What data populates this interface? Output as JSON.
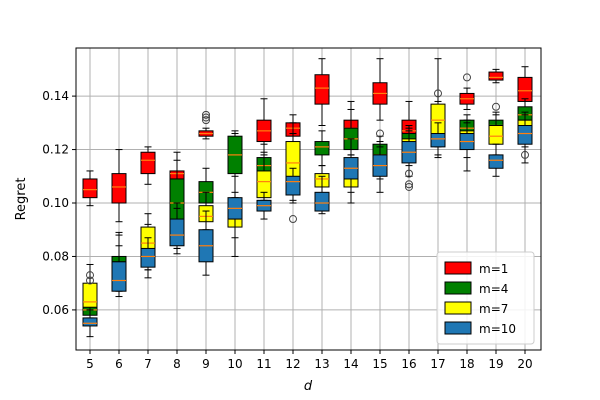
{
  "chart_data": {
    "type": "box",
    "xlabel": "d",
    "ylabel": "Regret",
    "categories": [
      "5",
      "6",
      "7",
      "8",
      "9",
      "10",
      "11",
      "12",
      "13",
      "14",
      "15",
      "16",
      "17",
      "18",
      "19",
      "20"
    ],
    "ylim": [
      0.045,
      0.158
    ],
    "yticks": [
      "0.06",
      "0.08",
      "0.10",
      "0.12",
      "0.14"
    ],
    "yticks_values": [
      0.06,
      0.08,
      0.1,
      0.12,
      0.14
    ],
    "grid": true,
    "legend_position": "lower-right",
    "median_color": "#ff7f0e",
    "series": [
      {
        "name": "m=1",
        "color": "#ff0000",
        "boxes": [
          {
            "q1": 0.102,
            "median": 0.105,
            "q3": 0.109,
            "whislo": 0.099,
            "whishi": 0.112,
            "fliers": []
          },
          {
            "q1": 0.1,
            "median": 0.106,
            "q3": 0.111,
            "whislo": 0.093,
            "whishi": 0.12,
            "fliers": []
          },
          {
            "q1": 0.111,
            "median": 0.116,
            "q3": 0.119,
            "whislo": 0.107,
            "whishi": 0.121,
            "fliers": []
          },
          {
            "q1": 0.109,
            "median": 0.111,
            "q3": 0.112,
            "whislo": 0.108,
            "whishi": 0.119,
            "fliers": []
          },
          {
            "q1": 0.125,
            "median": 0.126,
            "q3": 0.127,
            "whislo": 0.124,
            "whishi": 0.128,
            "fliers": [
              0.132,
              0.133,
              0.131
            ]
          },
          {
            "q1": 0.119,
            "median": 0.121,
            "q3": 0.123,
            "whislo": 0.117,
            "whishi": 0.126,
            "fliers": []
          },
          {
            "q1": 0.123,
            "median": 0.127,
            "q3": 0.131,
            "whislo": 0.118,
            "whishi": 0.139,
            "fliers": []
          },
          {
            "q1": 0.125,
            "median": 0.128,
            "q3": 0.13,
            "whislo": 0.122,
            "whishi": 0.133,
            "fliers": []
          },
          {
            "q1": 0.137,
            "median": 0.143,
            "q3": 0.148,
            "whislo": 0.129,
            "whishi": 0.154,
            "fliers": []
          },
          {
            "q1": 0.124,
            "median": 0.128,
            "q3": 0.131,
            "whislo": 0.118,
            "whishi": 0.138,
            "fliers": []
          },
          {
            "q1": 0.137,
            "median": 0.141,
            "q3": 0.145,
            "whislo": 0.131,
            "whishi": 0.154,
            "fliers": []
          },
          {
            "q1": 0.124,
            "median": 0.127,
            "q3": 0.131,
            "whislo": 0.117,
            "whishi": 0.138,
            "fliers": []
          },
          {
            "q1": 0.13,
            "median": 0.132,
            "q3": 0.134,
            "whislo": 0.126,
            "whishi": 0.138,
            "fliers": []
          },
          {
            "q1": 0.137,
            "median": 0.139,
            "q3": 0.141,
            "whislo": 0.135,
            "whishi": 0.143,
            "fliers": [
              0.147
            ]
          },
          {
            "q1": 0.146,
            "median": 0.147,
            "q3": 0.149,
            "whislo": 0.145,
            "whishi": 0.15,
            "fliers": []
          },
          {
            "q1": 0.138,
            "median": 0.142,
            "q3": 0.147,
            "whislo": 0.132,
            "whishi": 0.151,
            "fliers": []
          }
        ]
      },
      {
        "name": "m=4",
        "color": "#008000",
        "boxes": [
          {
            "q1": 0.058,
            "median": 0.06,
            "q3": 0.062,
            "whislo": 0.055,
            "whishi": 0.066,
            "fliers": []
          },
          {
            "q1": 0.073,
            "median": 0.077,
            "q3": 0.08,
            "whislo": 0.07,
            "whishi": 0.089,
            "fliers": []
          },
          {
            "q1": 0.078,
            "median": 0.082,
            "q3": 0.085,
            "whislo": 0.075,
            "whishi": 0.092,
            "fliers": []
          },
          {
            "q1": 0.092,
            "median": 0.1,
            "q3": 0.109,
            "whislo": 0.083,
            "whishi": 0.116,
            "fliers": []
          },
          {
            "q1": 0.1,
            "median": 0.104,
            "q3": 0.108,
            "whislo": 0.094,
            "whishi": 0.113,
            "fliers": []
          },
          {
            "q1": 0.111,
            "median": 0.118,
            "q3": 0.125,
            "whislo": 0.104,
            "whishi": 0.127,
            "fliers": []
          },
          {
            "q1": 0.109,
            "median": 0.114,
            "q3": 0.117,
            "whislo": 0.101,
            "whishi": 0.122,
            "fliers": []
          },
          {
            "q1": 0.112,
            "median": 0.116,
            "q3": 0.12,
            "whislo": 0.107,
            "whishi": 0.126,
            "fliers": []
          },
          {
            "q1": 0.118,
            "median": 0.121,
            "q3": 0.123,
            "whislo": 0.114,
            "whishi": 0.127,
            "fliers": []
          },
          {
            "q1": 0.12,
            "median": 0.124,
            "q3": 0.128,
            "whislo": 0.113,
            "whishi": 0.135,
            "fliers": []
          },
          {
            "q1": 0.116,
            "median": 0.118,
            "q3": 0.122,
            "whislo": 0.113,
            "whishi": 0.125,
            "fliers": [
              0.126
            ]
          },
          {
            "q1": 0.12,
            "median": 0.123,
            "q3": 0.126,
            "whislo": 0.116,
            "whishi": 0.129,
            "fliers": []
          },
          {
            "q1": 0.123,
            "median": 0.126,
            "q3": 0.129,
            "whislo": 0.121,
            "whishi": 0.133,
            "fliers": []
          },
          {
            "q1": 0.126,
            "median": 0.128,
            "q3": 0.131,
            "whislo": 0.123,
            "whishi": 0.133,
            "fliers": []
          },
          {
            "q1": 0.127,
            "median": 0.129,
            "q3": 0.131,
            "whislo": 0.124,
            "whishi": 0.133,
            "fliers": []
          },
          {
            "q1": 0.131,
            "median": 0.133,
            "q3": 0.136,
            "whislo": 0.128,
            "whishi": 0.139,
            "fliers": []
          }
        ]
      },
      {
        "name": "m=7",
        "color": "#ffff00",
        "boxes": [
          {
            "q1": 0.061,
            "median": 0.063,
            "q3": 0.07,
            "whislo": 0.057,
            "whishi": 0.077,
            "fliers": []
          },
          {
            "q1": 0.071,
            "median": 0.074,
            "q3": 0.078,
            "whislo": 0.067,
            "whishi": 0.084,
            "fliers": []
          },
          {
            "q1": 0.081,
            "median": 0.085,
            "q3": 0.091,
            "whislo": 0.075,
            "whishi": 0.096,
            "fliers": []
          },
          {
            "q1": 0.085,
            "median": 0.087,
            "q3": 0.093,
            "whislo": 0.083,
            "whishi": 0.1,
            "fliers": []
          },
          {
            "q1": 0.093,
            "median": 0.095,
            "q3": 0.099,
            "whislo": 0.09,
            "whishi": 0.104,
            "fliers": []
          },
          {
            "q1": 0.091,
            "median": 0.094,
            "q3": 0.098,
            "whislo": 0.087,
            "whishi": 0.102,
            "fliers": []
          },
          {
            "q1": 0.102,
            "median": 0.108,
            "q3": 0.112,
            "whislo": 0.097,
            "whishi": 0.119,
            "fliers": []
          },
          {
            "q1": 0.105,
            "median": 0.115,
            "q3": 0.123,
            "whislo": 0.1,
            "whishi": 0.13,
            "fliers": []
          },
          {
            "q1": 0.106,
            "median": 0.109,
            "q3": 0.111,
            "whislo": 0.101,
            "whishi": 0.114,
            "fliers": []
          },
          {
            "q1": 0.106,
            "median": 0.11,
            "q3": 0.113,
            "whislo": 0.1,
            "whishi": 0.118,
            "fliers": []
          },
          {
            "q1": 0.113,
            "median": 0.115,
            "q3": 0.118,
            "whislo": 0.109,
            "whishi": 0.121,
            "fliers": []
          },
          {
            "q1": 0.118,
            "median": 0.121,
            "q3": 0.124,
            "whislo": 0.114,
            "whishi": 0.128,
            "fliers": []
          },
          {
            "q1": 0.124,
            "median": 0.131,
            "q3": 0.137,
            "whislo": 0.117,
            "whishi": 0.154,
            "fliers": [
              0.141
            ]
          },
          {
            "q1": 0.121,
            "median": 0.124,
            "q3": 0.127,
            "whislo": 0.117,
            "whishi": 0.131,
            "fliers": []
          },
          {
            "q1": 0.122,
            "median": 0.125,
            "q3": 0.129,
            "whislo": 0.118,
            "whishi": 0.134,
            "fliers": [
              0.136
            ]
          },
          {
            "q1": 0.125,
            "median": 0.128,
            "q3": 0.131,
            "whislo": 0.121,
            "whishi": 0.134,
            "fliers": []
          }
        ]
      },
      {
        "name": "m=10",
        "color": "#1f77b4",
        "boxes": [
          {
            "q1": 0.054,
            "median": 0.055,
            "q3": 0.057,
            "whislo": 0.05,
            "whishi": 0.06,
            "fliers": [
              0.073,
              0.071
            ]
          },
          {
            "q1": 0.067,
            "median": 0.071,
            "q3": 0.078,
            "whislo": 0.065,
            "whishi": 0.088,
            "fliers": []
          },
          {
            "q1": 0.076,
            "median": 0.08,
            "q3": 0.083,
            "whislo": 0.072,
            "whishi": 0.087,
            "fliers": []
          },
          {
            "q1": 0.084,
            "median": 0.088,
            "q3": 0.094,
            "whislo": 0.081,
            "whishi": 0.098,
            "fliers": []
          },
          {
            "q1": 0.078,
            "median": 0.084,
            "q3": 0.09,
            "whislo": 0.073,
            "whishi": 0.097,
            "fliers": []
          },
          {
            "q1": 0.094,
            "median": 0.098,
            "q3": 0.102,
            "whislo": 0.08,
            "whishi": 0.11,
            "fliers": []
          },
          {
            "q1": 0.097,
            "median": 0.099,
            "q3": 0.101,
            "whislo": 0.094,
            "whishi": 0.104,
            "fliers": []
          },
          {
            "q1": 0.103,
            "median": 0.108,
            "q3": 0.11,
            "whislo": 0.101,
            "whishi": 0.113,
            "fliers": [
              0.094
            ]
          },
          {
            "q1": 0.097,
            "median": 0.1,
            "q3": 0.104,
            "whislo": 0.096,
            "whishi": 0.11,
            "fliers": []
          },
          {
            "q1": 0.109,
            "median": 0.113,
            "q3": 0.117,
            "whislo": 0.104,
            "whishi": 0.124,
            "fliers": []
          },
          {
            "q1": 0.11,
            "median": 0.114,
            "q3": 0.118,
            "whislo": 0.104,
            "whishi": 0.123,
            "fliers": []
          },
          {
            "q1": 0.115,
            "median": 0.119,
            "q3": 0.123,
            "whislo": 0.11,
            "whishi": 0.127,
            "fliers": [
              0.111,
              0.107,
              0.106
            ]
          },
          {
            "q1": 0.121,
            "median": 0.124,
            "q3": 0.126,
            "whislo": 0.118,
            "whishi": 0.13,
            "fliers": []
          },
          {
            "q1": 0.12,
            "median": 0.123,
            "q3": 0.126,
            "whislo": 0.112,
            "whishi": 0.13,
            "fliers": []
          },
          {
            "q1": 0.113,
            "median": 0.116,
            "q3": 0.118,
            "whislo": 0.11,
            "whishi": 0.122,
            "fliers": []
          },
          {
            "q1": 0.122,
            "median": 0.126,
            "q3": 0.129,
            "whislo": 0.115,
            "whishi": 0.133,
            "fliers": [
              0.118
            ]
          }
        ]
      }
    ]
  }
}
